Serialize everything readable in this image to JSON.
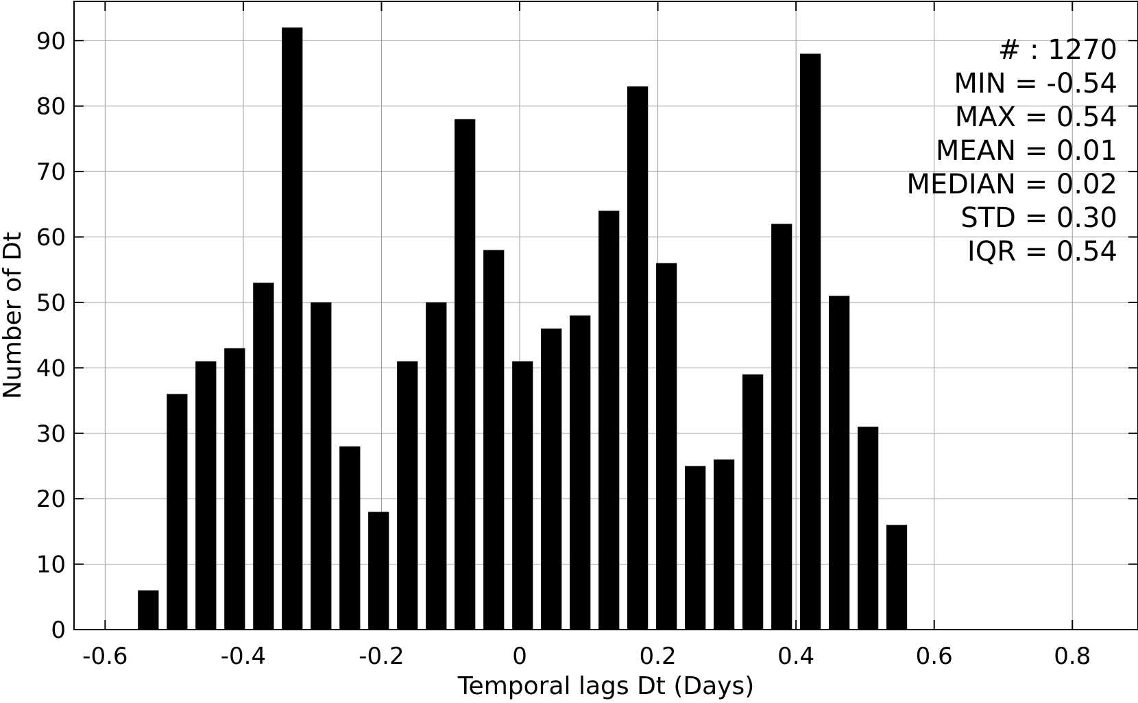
{
  "chart_data": {
    "type": "bar",
    "title": "",
    "xlabel": "Temporal lags Dt (Days)",
    "ylabel": "Number of Dt",
    "xlim": [
      -0.645,
      0.895
    ],
    "ylim": [
      0,
      96
    ],
    "grid": true,
    "bar_color": "#000000",
    "bar_width": 0.03,
    "x_ticks": [
      -0.6,
      -0.4,
      -0.2,
      0,
      0.2,
      0.4,
      0.6,
      0.8
    ],
    "x_tick_labels": [
      "-0.6",
      "-0.4",
      "-0.2",
      "0",
      "0.2",
      "0.4",
      "0.6",
      "0.8"
    ],
    "y_ticks": [
      0,
      10,
      20,
      30,
      40,
      50,
      60,
      70,
      80,
      90
    ],
    "y_tick_labels": [
      "0",
      "10",
      "20",
      "30",
      "40",
      "50",
      "60",
      "70",
      "80",
      "90"
    ],
    "x": [
      -0.5375,
      -0.4958,
      -0.4542,
      -0.4125,
      -0.3708,
      -0.3292,
      -0.2875,
      -0.2458,
      -0.2042,
      -0.1625,
      -0.1208,
      -0.0792,
      -0.0375,
      0.0042,
      0.0458,
      0.0875,
      0.1292,
      0.1708,
      0.2125,
      0.2542,
      0.2958,
      0.3375,
      0.3792,
      0.4208,
      0.4625,
      0.5042,
      0.5458
    ],
    "values": [
      6,
      36,
      41,
      43,
      53,
      92,
      50,
      28,
      18,
      41,
      50,
      78,
      58,
      41,
      46,
      48,
      64,
      83,
      56,
      25,
      26,
      39,
      62,
      88,
      51,
      31,
      16
    ],
    "stats_position": "top-right",
    "stats": [
      "# : 1270",
      "MIN = -0.54",
      "MAX =  0.54",
      "MEAN = 0.01",
      "MEDIAN = 0.02",
      "STD = 0.30",
      "IQR = 0.54"
    ]
  }
}
